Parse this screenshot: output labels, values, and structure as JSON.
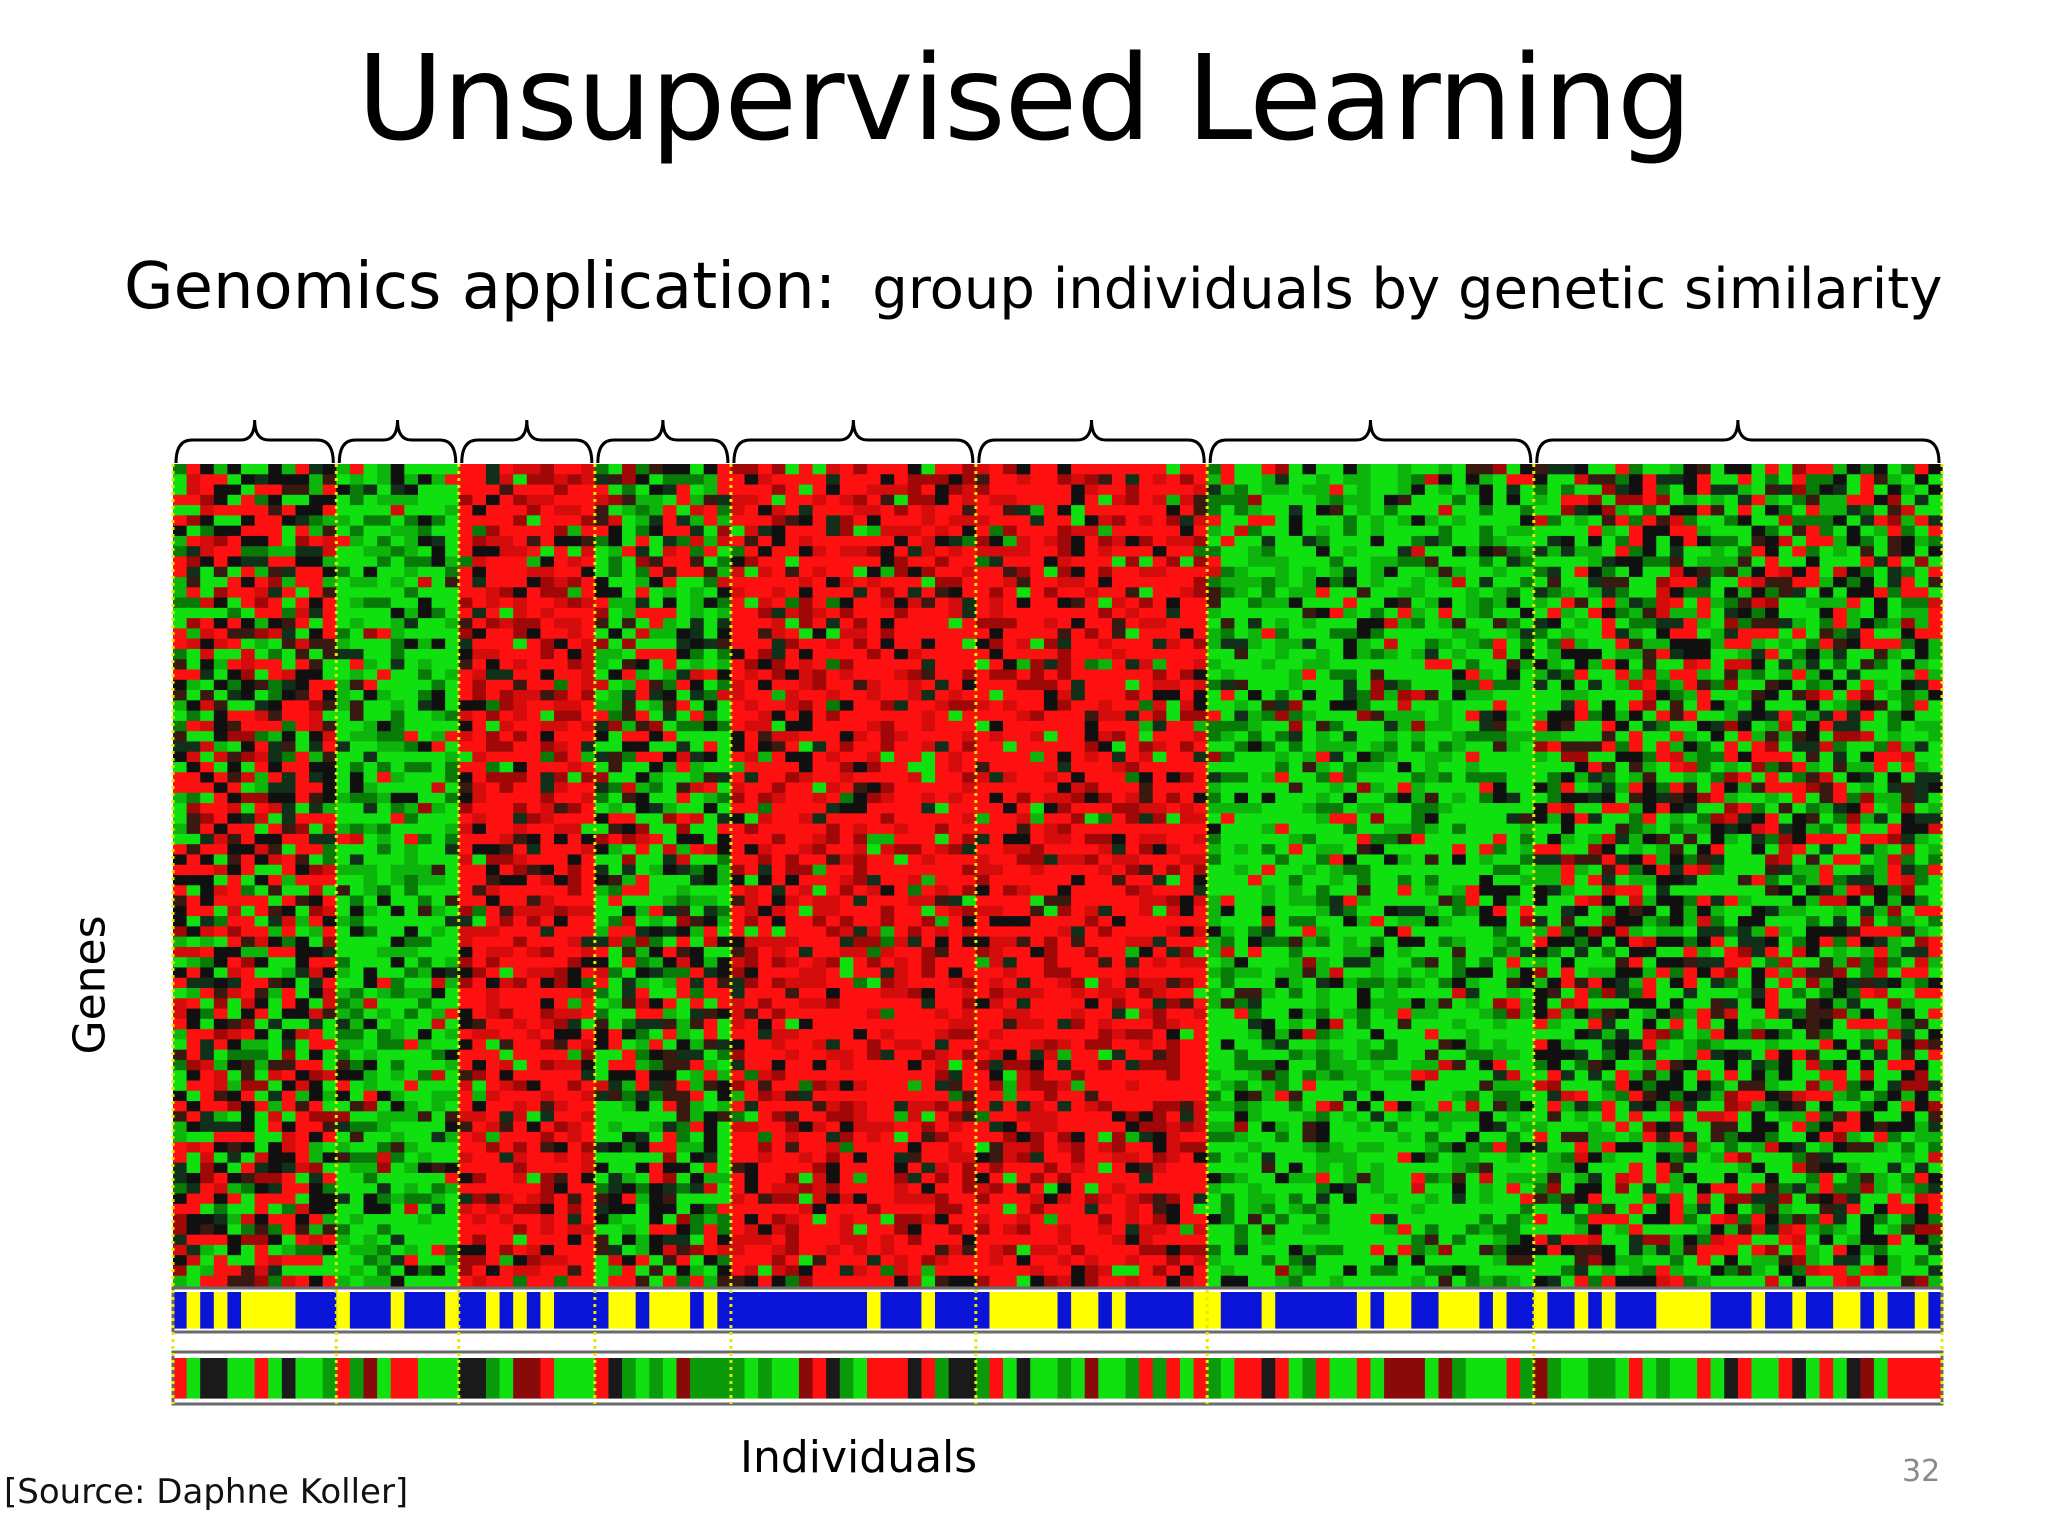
{
  "slide": {
    "title": "Unsupervised Learning",
    "subtitle_lead": "Genomics application:",
    "subtitle_rest": "group individuals by genetic similarity",
    "y_label": "Genes",
    "x_label": "Individuals",
    "source": "[Source: Daphne Koller]",
    "page_number": "32"
  },
  "colors": {
    "red": "#ff1010",
    "green": "#10e010",
    "dark": "#101010",
    "yellow": "#ffff00",
    "blue": "#0a14d8",
    "divider": "#e8e800"
  },
  "chart_data": {
    "type": "heatmap",
    "rows": "genes",
    "columns": "individuals",
    "clusters": [
      {
        "columns": 12,
        "dominant": "mixed-red"
      },
      {
        "columns": 9,
        "dominant": "green"
      },
      {
        "columns": 10,
        "dominant": "red"
      },
      {
        "columns": 10,
        "dominant": "mixed-green"
      },
      {
        "columns": 18,
        "dominant": "red"
      },
      {
        "columns": 17,
        "dominant": "red"
      },
      {
        "columns": 24,
        "dominant": "green"
      },
      {
        "columns": 30,
        "dominant": "mixed-green"
      }
    ],
    "annotation_rows": [
      "yellow-blue",
      "red-green"
    ]
  }
}
